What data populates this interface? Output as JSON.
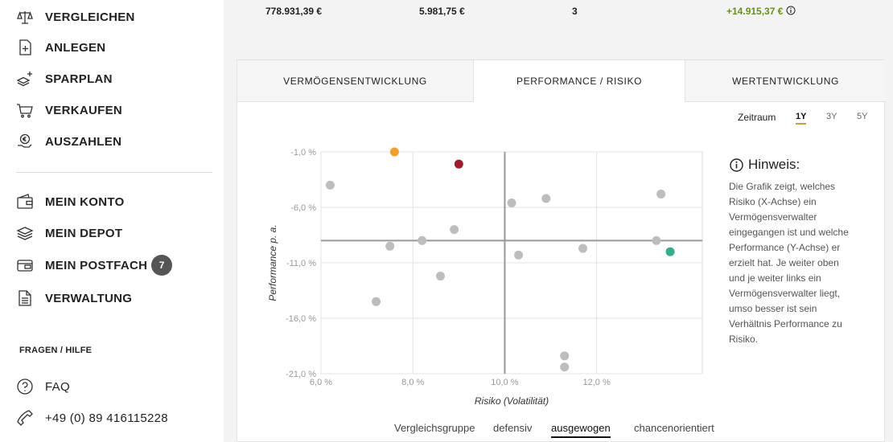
{
  "sidebar": {
    "nav_top": [
      {
        "label": "VERGLEICHEN",
        "icon": "scales-icon"
      },
      {
        "label": "ANLEGEN",
        "icon": "document-plus-icon"
      },
      {
        "label": "SPARPLAN",
        "icon": "stack-plus-icon"
      },
      {
        "label": "VERKAUFEN",
        "icon": "cart-icon"
      },
      {
        "label": "AUSZAHLEN",
        "icon": "coins-hand-icon"
      }
    ],
    "nav_account": [
      {
        "label": "MEIN KONTO",
        "icon": "wallet-icon"
      },
      {
        "label": "MEIN DEPOT",
        "icon": "layers-icon"
      },
      {
        "label": "MEIN POSTFACH",
        "icon": "mailbox-icon",
        "badge": "7"
      },
      {
        "label": "VERWALTUNG",
        "icon": "document-icon"
      }
    ],
    "help_heading": "FRAGEN / HILFE",
    "help_items": [
      {
        "label": "FAQ",
        "icon": "question-circle-icon"
      },
      {
        "label": "+49 (0) 89 416115228",
        "icon": "phone-icon"
      }
    ]
  },
  "top_stats": [
    "778.931,39 €",
    "5.981,75 €",
    "3",
    "+14.915,37 €"
  ],
  "tabs": [
    {
      "label": "VERMÖGENSENTWICKLUNG",
      "active": false
    },
    {
      "label": "PERFORMANCE / RISIKO",
      "active": true
    },
    {
      "label": "WERTENTWICKLUNG",
      "active": false
    }
  ],
  "period": {
    "label": "Zeitraum",
    "options": [
      "1Y",
      "3Y",
      "5Y"
    ],
    "selected": "1Y"
  },
  "hint": {
    "title": "Hinweis:",
    "text": "Die Grafik zeigt, welches Risiko (X-Achse) ein Vermögensverwalter eingegangen ist und welche Performance (Y-Achse) er erzielt hat. Je weiter oben und je weiter links ein Vermögens­verwalter liegt, umso besser ist sein Verhältnis Performance zu Risiko."
  },
  "comparison": {
    "label": "Vergleichsgruppe",
    "options": [
      "defensiv",
      "ausgewogen",
      "chancenorientiert"
    ],
    "selected": "ausgewogen"
  },
  "colors": {
    "gray": "#bdbdbd",
    "orange": "#f0a030",
    "red": "#9b1c2c",
    "teal": "#3aaa8e",
    "positive": "#6a8f1d",
    "accent_underline": "#c5a13e"
  },
  "chart_data": {
    "type": "scatter",
    "xlabel": "Risiko (Volatilität)",
    "ylabel": "Performance p. a.",
    "x_ticks": [
      "6,0 %",
      "8,0 %",
      "10,0 %",
      "12,0 %"
    ],
    "y_ticks": [
      "-1,0 %",
      "-6,0 %",
      "-11,0 %",
      "-16,0 %",
      "-21,0 %"
    ],
    "xlim": [
      6.0,
      14.3
    ],
    "ylim": [
      -21.0,
      -1.0
    ],
    "reference_lines": {
      "x": 10.0,
      "y": -9.0
    },
    "points": [
      {
        "x": 6.2,
        "y": -4.0,
        "color": "gray"
      },
      {
        "x": 7.6,
        "y": -1.0,
        "color": "orange"
      },
      {
        "x": 9.0,
        "y": -2.1,
        "color": "red"
      },
      {
        "x": 7.5,
        "y": -9.5,
        "color": "gray"
      },
      {
        "x": 7.2,
        "y": -14.5,
        "color": "gray"
      },
      {
        "x": 8.2,
        "y": -9.0,
        "color": "gray"
      },
      {
        "x": 8.9,
        "y": -8.0,
        "color": "gray"
      },
      {
        "x": 8.6,
        "y": -12.2,
        "color": "gray"
      },
      {
        "x": 10.15,
        "y": -5.6,
        "color": "gray"
      },
      {
        "x": 10.9,
        "y": -5.2,
        "color": "gray"
      },
      {
        "x": 10.3,
        "y": -10.3,
        "color": "gray"
      },
      {
        "x": 11.7,
        "y": -9.7,
        "color": "gray"
      },
      {
        "x": 11.3,
        "y": -19.4,
        "color": "gray"
      },
      {
        "x": 11.3,
        "y": -20.4,
        "color": "gray"
      },
      {
        "x": 13.4,
        "y": -4.8,
        "color": "gray"
      },
      {
        "x": 13.3,
        "y": -9.0,
        "color": "gray"
      },
      {
        "x": 13.6,
        "y": -10.0,
        "color": "teal"
      }
    ]
  }
}
